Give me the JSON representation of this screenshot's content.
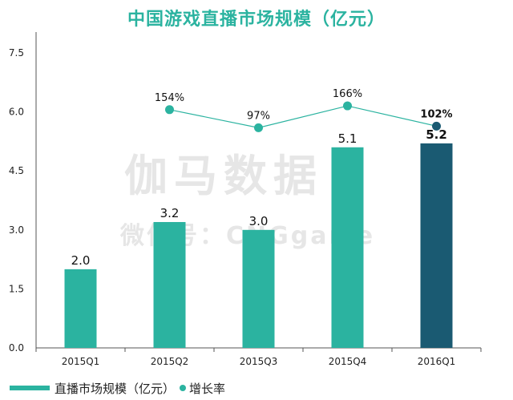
{
  "watermark": {
    "line1": "伽马数据",
    "line2": "微信号：CNGgame"
  },
  "colors": {
    "bar": "#2bb3a0",
    "bar_highlight": "#1a5a72",
    "line": "#2bb3a0",
    "point_highlight": "#1a5a72",
    "title": "#2bb3a0"
  },
  "chart_data": {
    "type": "bar",
    "title": "中国游戏直播市场规模（亿元）",
    "xlabel": "",
    "ylabel": "",
    "categories": [
      "2015Q1",
      "2015Q2",
      "2015Q3",
      "2015Q4",
      "2016Q1"
    ],
    "ylim": [
      0,
      7.5
    ],
    "yticks": [
      "0.0",
      "1.5",
      "3.0",
      "4.5",
      "6.0",
      "7.5"
    ],
    "grid": false,
    "legend_position": "bottom-left",
    "series": [
      {
        "name": "直播市场规模（亿元）",
        "type": "bar",
        "values": [
          2.0,
          3.2,
          3.0,
          5.1,
          5.2
        ],
        "labels": [
          "2.0",
          "3.2",
          "3.0",
          "5.1",
          "5.2"
        ]
      },
      {
        "name": "增长率",
        "type": "line",
        "values": [
          null,
          154,
          97,
          166,
          102
        ],
        "labels": [
          "",
          "154%",
          "97%",
          "166%",
          "102%"
        ],
        "y_range_percent": [
          70,
          280
        ]
      }
    ]
  }
}
